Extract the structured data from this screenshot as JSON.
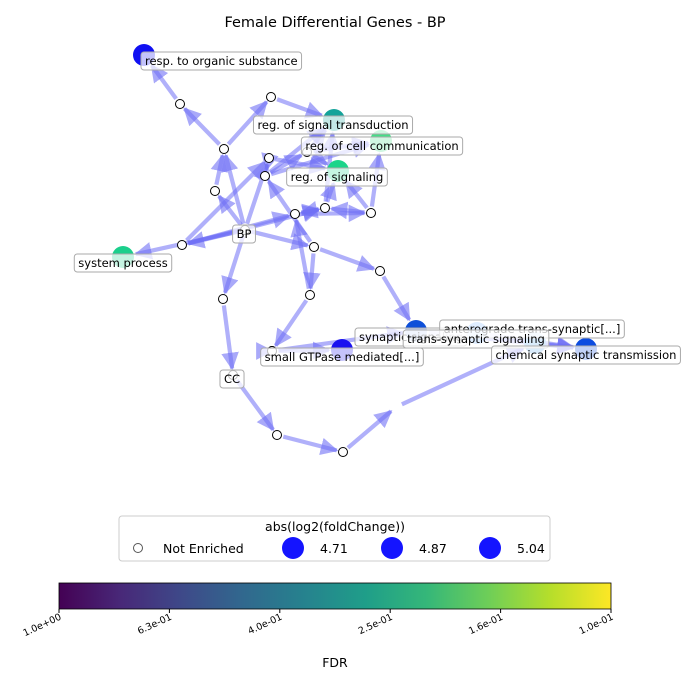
{
  "figure": {
    "title": "Female Differential Genes - BP",
    "edge_color": "#6f6ff5",
    "terminal_label_color": "#000000"
  },
  "nodes": [
    {
      "id": "resp",
      "label": "resp. to organic substance",
      "fill": "#1010f2",
      "enriched": true
    },
    {
      "id": "sigtrans",
      "label": "reg. of signal transduction",
      "fill": "#14a39a",
      "enriched": true
    },
    {
      "id": "cellcomm",
      "label": "reg. of cell communication",
      "fill": "#43df86",
      "enriched": true
    },
    {
      "id": "signaling",
      "label": "reg. of signaling",
      "fill": "#1bd58a",
      "enriched": true
    },
    {
      "id": "bp",
      "label": "BP",
      "fill": "#ffffff",
      "enriched": false
    },
    {
      "id": "sysproc",
      "label": "system process",
      "fill": "#1bcf8c",
      "enriched": true
    },
    {
      "id": "synaptic",
      "label": "synaptic signaling",
      "fill": "#0d4fd9",
      "enriched": true
    },
    {
      "id": "antero",
      "label": "anterograde trans-synaptic[...]",
      "fill": "#7fb6ff",
      "enriched": true
    },
    {
      "id": "transsyn",
      "label": "trans-synaptic signaling",
      "fill": "#6aaef0",
      "enriched": true
    },
    {
      "id": "chemsyn",
      "label": "chemical synaptic transmission",
      "fill": "#0c4ce0",
      "enriched": true
    },
    {
      "id": "gtpase",
      "label": "small GTPase mediated[...]",
      "fill": "#1a12f0",
      "enriched": true
    },
    {
      "id": "cc",
      "label": "CC",
      "fill": "#ffffff",
      "enriched": false
    },
    {
      "id": "u1",
      "label": "",
      "fill": "#ffffff",
      "enriched": false
    },
    {
      "id": "u2",
      "label": "",
      "fill": "#ffffff",
      "enriched": false
    },
    {
      "id": "u3",
      "label": "",
      "fill": "#ffffff",
      "enriched": false
    },
    {
      "id": "u4",
      "label": "",
      "fill": "#ffffff",
      "enriched": false
    },
    {
      "id": "u5",
      "label": "",
      "fill": "#ffffff",
      "enriched": false
    },
    {
      "id": "u6",
      "label": "",
      "fill": "#ffffff",
      "enriched": false
    },
    {
      "id": "u7",
      "label": "",
      "fill": "#ffffff",
      "enriched": false
    },
    {
      "id": "u8",
      "label": "",
      "fill": "#ffffff",
      "enriched": false
    },
    {
      "id": "u9",
      "label": "",
      "fill": "#ffffff",
      "enriched": false
    },
    {
      "id": "u10",
      "label": "",
      "fill": "#ffffff",
      "enriched": false
    },
    {
      "id": "u11",
      "label": "",
      "fill": "#ffffff",
      "enriched": false
    },
    {
      "id": "u12",
      "label": "",
      "fill": "#ffffff",
      "enriched": false
    },
    {
      "id": "u13",
      "label": "",
      "fill": "#ffffff",
      "enriched": false
    },
    {
      "id": "u14",
      "label": "",
      "fill": "#ffffff",
      "enriched": false
    },
    {
      "id": "u15",
      "label": "",
      "fill": "#ffffff",
      "enriched": false
    },
    {
      "id": "u16",
      "label": "",
      "fill": "#ffffff",
      "enriched": false
    },
    {
      "id": "u17",
      "label": "",
      "fill": "#ffffff",
      "enriched": false
    },
    {
      "id": "u18",
      "label": "",
      "fill": "#ffffff",
      "enriched": false
    },
    {
      "id": "u19",
      "label": "",
      "fill": "#ffffff",
      "enriched": false
    }
  ],
  "edges": [
    [
      "u1",
      "resp"
    ],
    [
      "u2",
      "u1"
    ],
    [
      "u2",
      "u3"
    ],
    [
      "u3",
      "sigtrans"
    ],
    [
      "bp",
      "u2"
    ],
    [
      "bp",
      "u5"
    ],
    [
      "bp",
      "u4"
    ],
    [
      "bp",
      "sysproc"
    ],
    [
      "bp",
      "u6"
    ],
    [
      "bp",
      "u7"
    ],
    [
      "bp",
      "u8"
    ],
    [
      "u5",
      "u2"
    ],
    [
      "u4",
      "u9"
    ],
    [
      "u4",
      "signaling"
    ],
    [
      "u9",
      "sigtrans"
    ],
    [
      "u9",
      "cellcomm"
    ],
    [
      "u9",
      "u10"
    ],
    [
      "u10",
      "sigtrans"
    ],
    [
      "u10",
      "signaling"
    ],
    [
      "u10",
      "cellcomm"
    ],
    [
      "u6",
      "u4"
    ],
    [
      "u6",
      "u11"
    ],
    [
      "u6",
      "u12"
    ],
    [
      "u11",
      "u12"
    ],
    [
      "u12",
      "u11"
    ],
    [
      "u12",
      "signaling"
    ],
    [
      "u12",
      "sigtrans"
    ],
    [
      "u11",
      "u13"
    ],
    [
      "u13",
      "u12"
    ],
    [
      "u13",
      "cellcomm"
    ],
    [
      "u13",
      "signaling"
    ],
    [
      "u7",
      "u9"
    ],
    [
      "u7",
      "u14"
    ],
    [
      "u7",
      "u15"
    ],
    [
      "u15",
      "u11"
    ],
    [
      "u15",
      "u16"
    ],
    [
      "u16",
      "synaptic"
    ],
    [
      "u16",
      "gtpase"
    ],
    [
      "u14",
      "synaptic"
    ],
    [
      "u17",
      "u16"
    ],
    [
      "u8",
      "cc"
    ],
    [
      "cc",
      "u18"
    ],
    [
      "u18",
      "u19"
    ],
    [
      "u19",
      "u20"
    ],
    [
      "u20",
      "transsyn"
    ],
    [
      "synaptic",
      "chemsyn"
    ],
    [
      "transsyn",
      "chemsyn"
    ],
    [
      "antero",
      "chemsyn"
    ]
  ],
  "legend": {
    "title": "abs(log2(foldChange))",
    "entries": [
      {
        "label": "Not Enriched",
        "marker": "hollow"
      },
      {
        "label": "4.71",
        "marker": "filled"
      },
      {
        "label": "4.87",
        "marker": "filled"
      },
      {
        "label": "5.04",
        "marker": "filled"
      }
    ],
    "filled_color": "#1414ff"
  },
  "colorbar": {
    "label": "FDR",
    "ticks": [
      "1.0e+00",
      "6.3e-01",
      "4.0e-01",
      "2.5e-01",
      "1.6e-01",
      "1.0e-01"
    ],
    "colormap": [
      "#440154",
      "#482878",
      "#3e4989",
      "#31688e",
      "#26828e",
      "#1f9e89",
      "#35b779",
      "#6ece58",
      "#b5de2b",
      "#fde725"
    ]
  }
}
